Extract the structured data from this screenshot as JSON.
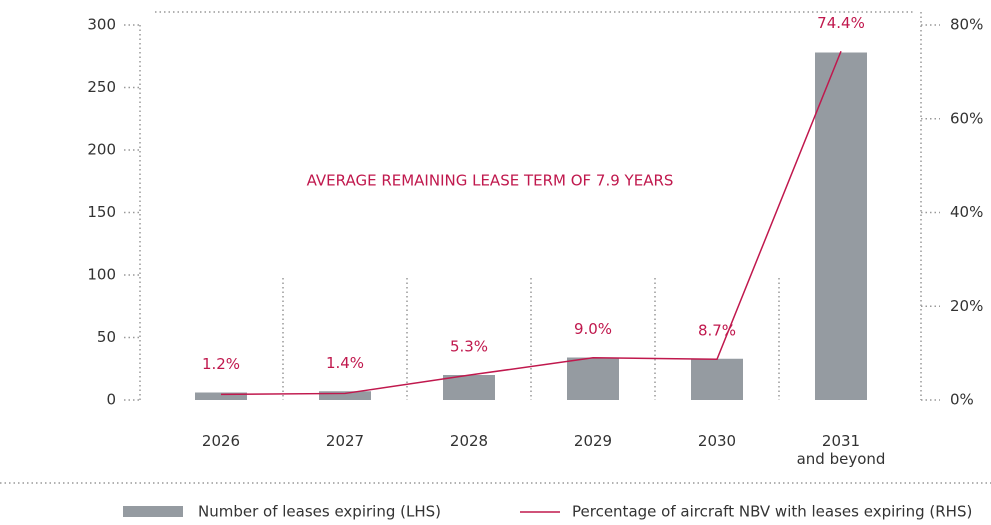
{
  "chart_data": {
    "type": "bar_line",
    "annotation": "AVERAGE REMAINING LEASE TERM OF 7.9 YEARS",
    "categories": [
      "2026",
      "2027",
      "2028",
      "2029",
      "2030",
      "2031\nand beyond"
    ],
    "series": [
      {
        "name": "Number of leases expiring (LHS)",
        "type": "bar",
        "color": "#959ba1",
        "values": [
          6,
          7,
          20,
          34,
          33,
          278
        ]
      },
      {
        "name": "Percentage of aircraft NBV with leases expiring (RHS)",
        "type": "line",
        "axis": "y2",
        "color": "#c0184d",
        "values": [
          1.2,
          1.4,
          5.3,
          9.0,
          8.7,
          74.4
        ],
        "value_labels": [
          "1.2%",
          "1.4%",
          "5.3%",
          "9.0%",
          "8.7%",
          "74.4%"
        ]
      }
    ],
    "ylim": [
      0,
      300
    ],
    "yticks": [
      0,
      50,
      100,
      150,
      200,
      250,
      300
    ],
    "y2lim": [
      0,
      80
    ],
    "y2ticks": [
      {
        "value": 0,
        "label": "0%"
      },
      {
        "value": 20,
        "label": "20%"
      },
      {
        "value": 40,
        "label": "40%"
      },
      {
        "value": 60,
        "label": "60%"
      },
      {
        "value": 80,
        "label": "80%"
      }
    ]
  }
}
